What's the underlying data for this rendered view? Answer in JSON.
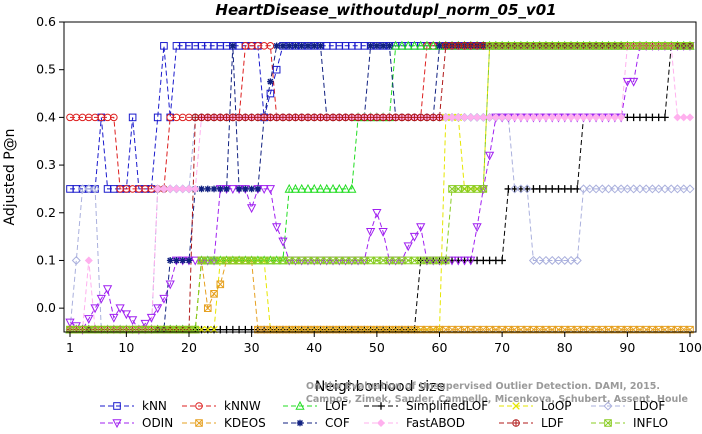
{
  "chart_data": {
    "type": "line",
    "title": "HeartDisease_withoutdupl_norm_05_v01",
    "xlabel": "Neighborhood size",
    "ylabel": "Adjusted P@n",
    "xlim": [
      1,
      100
    ],
    "ylim": [
      -0.05,
      0.6
    ],
    "x_ticks": [
      1,
      10,
      20,
      30,
      40,
      50,
      60,
      70,
      80,
      90,
      100
    ],
    "y_ticks": [
      0.0,
      0.1,
      0.2,
      0.3,
      0.4,
      0.5,
      0.6
    ],
    "grid": false,
    "legend_placement": "bottom",
    "series": [
      {
        "name": "kNN",
        "color": "#1a1acc",
        "marker": "square",
        "dash": "5,3",
        "points": [
          [
            1,
            0.25
          ],
          [
            5,
            0.25
          ],
          [
            6,
            0.4
          ],
          [
            7,
            0.25
          ],
          [
            10,
            0.25
          ],
          [
            11,
            0.4
          ],
          [
            12,
            0.25
          ],
          [
            14,
            0.25
          ],
          [
            15,
            0.4
          ],
          [
            16,
            0.55
          ],
          [
            17,
            0.4
          ],
          [
            18,
            0.55
          ],
          [
            31,
            0.55
          ],
          [
            32,
            0.4
          ],
          [
            35,
            0.55
          ],
          [
            100,
            0.55
          ]
        ]
      },
      {
        "name": "kNNW",
        "color": "#dd1f1f",
        "marker": "circle",
        "dash": "5,3",
        "points": [
          [
            1,
            0.4
          ],
          [
            8,
            0.4
          ],
          [
            9,
            0.25
          ],
          [
            16,
            0.25
          ],
          [
            17,
            0.4
          ],
          [
            28,
            0.4
          ],
          [
            29,
            0.55
          ],
          [
            33,
            0.55
          ],
          [
            34,
            0.4
          ],
          [
            57,
            0.4
          ],
          [
            58,
            0.55
          ],
          [
            100,
            0.55
          ]
        ]
      },
      {
        "name": "LOF",
        "color": "#22dd22",
        "marker": "triangle-up",
        "dash": "5,3",
        "points": [
          [
            1,
            -0.045
          ],
          [
            21,
            -0.045
          ],
          [
            22,
            0.1
          ],
          [
            35,
            0.1
          ],
          [
            36,
            0.25
          ],
          [
            46,
            0.25
          ],
          [
            47,
            0.4
          ],
          [
            52,
            0.4
          ],
          [
            53,
            0.55
          ],
          [
            100,
            0.55
          ]
        ]
      },
      {
        "name": "SimplifiedLOF",
        "color": "#000000",
        "marker": "plus",
        "dash": "5,3",
        "points": [
          [
            1,
            -0.045
          ],
          [
            56,
            -0.045
          ],
          [
            57,
            0.1
          ],
          [
            70,
            0.1
          ],
          [
            71,
            0.25
          ],
          [
            82,
            0.25
          ],
          [
            83,
            0.4
          ],
          [
            96,
            0.4
          ],
          [
            97,
            0.55
          ],
          [
            100,
            0.55
          ]
        ]
      },
      {
        "name": "LoOP",
        "color": "#e6e600",
        "marker": "x",
        "dash": "5,3",
        "points": [
          [
            1,
            -0.045
          ],
          [
            24,
            -0.045
          ],
          [
            25,
            0.1
          ],
          [
            32,
            0.1
          ],
          [
            33,
            -0.045
          ],
          [
            60,
            -0.045
          ],
          [
            61,
            0.4
          ],
          [
            63,
            0.4
          ],
          [
            64,
            0.25
          ],
          [
            67,
            0.25
          ],
          [
            68,
            0.55
          ],
          [
            100,
            0.55
          ]
        ]
      },
      {
        "name": "LDOF",
        "color": "#aab0dd",
        "marker": "diamond",
        "dash": "5,3",
        "points": [
          [
            1,
            -0.045
          ],
          [
            2,
            0.1
          ],
          [
            3,
            0.25
          ],
          [
            5,
            0.25
          ],
          [
            6,
            -0.045
          ],
          [
            14,
            -0.045
          ],
          [
            15,
            0.25
          ],
          [
            20,
            0.25
          ],
          [
            21,
            0.4
          ],
          [
            71,
            0.4
          ],
          [
            72,
            0.25
          ],
          [
            74,
            0.25
          ],
          [
            75,
            0.1
          ],
          [
            82,
            0.1
          ],
          [
            83,
            0.25
          ],
          [
            100,
            0.25
          ]
        ]
      },
      {
        "name": "ODIN",
        "color": "#a020f0",
        "marker": "triangle-down",
        "dash": "5,3",
        "points": [
          [
            1,
            -0.03
          ],
          [
            3,
            -0.045
          ],
          [
            5,
            0.0
          ],
          [
            6,
            0.02
          ],
          [
            7,
            0.04
          ],
          [
            8,
            -0.02
          ],
          [
            9,
            0.0
          ],
          [
            11,
            -0.025
          ],
          [
            12,
            -0.045
          ],
          [
            14,
            -0.02
          ],
          [
            15,
            0.0
          ],
          [
            16,
            0.02
          ],
          [
            17,
            0.05
          ],
          [
            18,
            0.1
          ],
          [
            24,
            0.1
          ],
          [
            25,
            0.25
          ],
          [
            29,
            0.25
          ],
          [
            30,
            0.21
          ],
          [
            31,
            0.25
          ],
          [
            33,
            0.25
          ],
          [
            34,
            0.17
          ],
          [
            35,
            0.14
          ],
          [
            36,
            0.1
          ],
          [
            48,
            0.1
          ],
          [
            49,
            0.16
          ],
          [
            50,
            0.2
          ],
          [
            51,
            0.16
          ],
          [
            52,
            0.1
          ],
          [
            54,
            0.1
          ],
          [
            55,
            0.13
          ],
          [
            56,
            0.15
          ],
          [
            57,
            0.17
          ],
          [
            58,
            0.1
          ],
          [
            65,
            0.1
          ],
          [
            66,
            0.17
          ],
          [
            67,
            0.25
          ],
          [
            68,
            0.32
          ],
          [
            69,
            0.4
          ],
          [
            89,
            0.4
          ],
          [
            90,
            0.475
          ],
          [
            91,
            0.475
          ],
          [
            92,
            0.55
          ],
          [
            100,
            0.55
          ]
        ]
      },
      {
        "name": "KDEOS",
        "color": "#e6a020",
        "marker": "square-x",
        "dash": "5,3",
        "points": [
          [
            1,
            -0.045
          ],
          [
            21,
            -0.045
          ],
          [
            22,
            0.1
          ],
          [
            23,
            0.0
          ],
          [
            24,
            0.03
          ],
          [
            25,
            0.05
          ],
          [
            26,
            0.1
          ],
          [
            30,
            0.1
          ],
          [
            31,
            -0.045
          ],
          [
            100,
            -0.045
          ]
        ]
      },
      {
        "name": "COF",
        "color": "#102080",
        "marker": "asterisk",
        "dash": "5,3",
        "points": [
          [
            1,
            -0.045
          ],
          [
            16,
            -0.045
          ],
          [
            17,
            0.1
          ],
          [
            20,
            0.1
          ],
          [
            21,
            0.25
          ],
          [
            26,
            0.25
          ],
          [
            27,
            0.55
          ],
          [
            28,
            0.25
          ],
          [
            31,
            0.25
          ],
          [
            32,
            0.4
          ],
          [
            34,
            0.55
          ],
          [
            41,
            0.55
          ],
          [
            42,
            0.4
          ],
          [
            48,
            0.4
          ],
          [
            49,
            0.55
          ],
          [
            52,
            0.55
          ],
          [
            53,
            0.4
          ],
          [
            59,
            0.4
          ],
          [
            60,
            0.55
          ],
          [
            100,
            0.55
          ]
        ]
      },
      {
        "name": "FastABOD",
        "color": "#ffb0ee",
        "marker": "diamond-filled",
        "dash": "5,3",
        "points": [
          [
            1,
            -0.045
          ],
          [
            3,
            -0.045
          ],
          [
            4,
            0.1
          ],
          [
            5,
            -0.045
          ],
          [
            14,
            -0.045
          ],
          [
            15,
            0.25
          ],
          [
            21,
            0.25
          ],
          [
            22,
            0.4
          ],
          [
            89,
            0.4
          ],
          [
            90,
            0.55
          ],
          [
            97,
            0.55
          ],
          [
            98,
            0.4
          ],
          [
            100,
            0.4
          ]
        ]
      },
      {
        "name": "LDF",
        "color": "#b01818",
        "marker": "circle-plus",
        "dash": "5,3",
        "points": [
          [
            1,
            -0.045
          ],
          [
            20,
            -0.045
          ],
          [
            21,
            0.4
          ],
          [
            60,
            0.4
          ],
          [
            61,
            0.55
          ],
          [
            100,
            0.55
          ]
        ]
      },
      {
        "name": "INFLO",
        "color": "#88cc22",
        "marker": "square-x",
        "dash": "5,3",
        "points": [
          [
            1,
            -0.045
          ],
          [
            21,
            -0.045
          ],
          [
            22,
            0.1
          ],
          [
            61,
            0.1
          ],
          [
            62,
            0.25
          ],
          [
            67,
            0.25
          ],
          [
            68,
            0.55
          ],
          [
            100,
            0.55
          ]
        ]
      }
    ]
  },
  "watermark": {
    "line1": "Campos, Zimek, Sander, Campello, Micenkova, Schubert, Assent, Houle",
    "line2": "On the Evaluation of Unsupervised Outlier Detection. DAMI, 2015."
  }
}
